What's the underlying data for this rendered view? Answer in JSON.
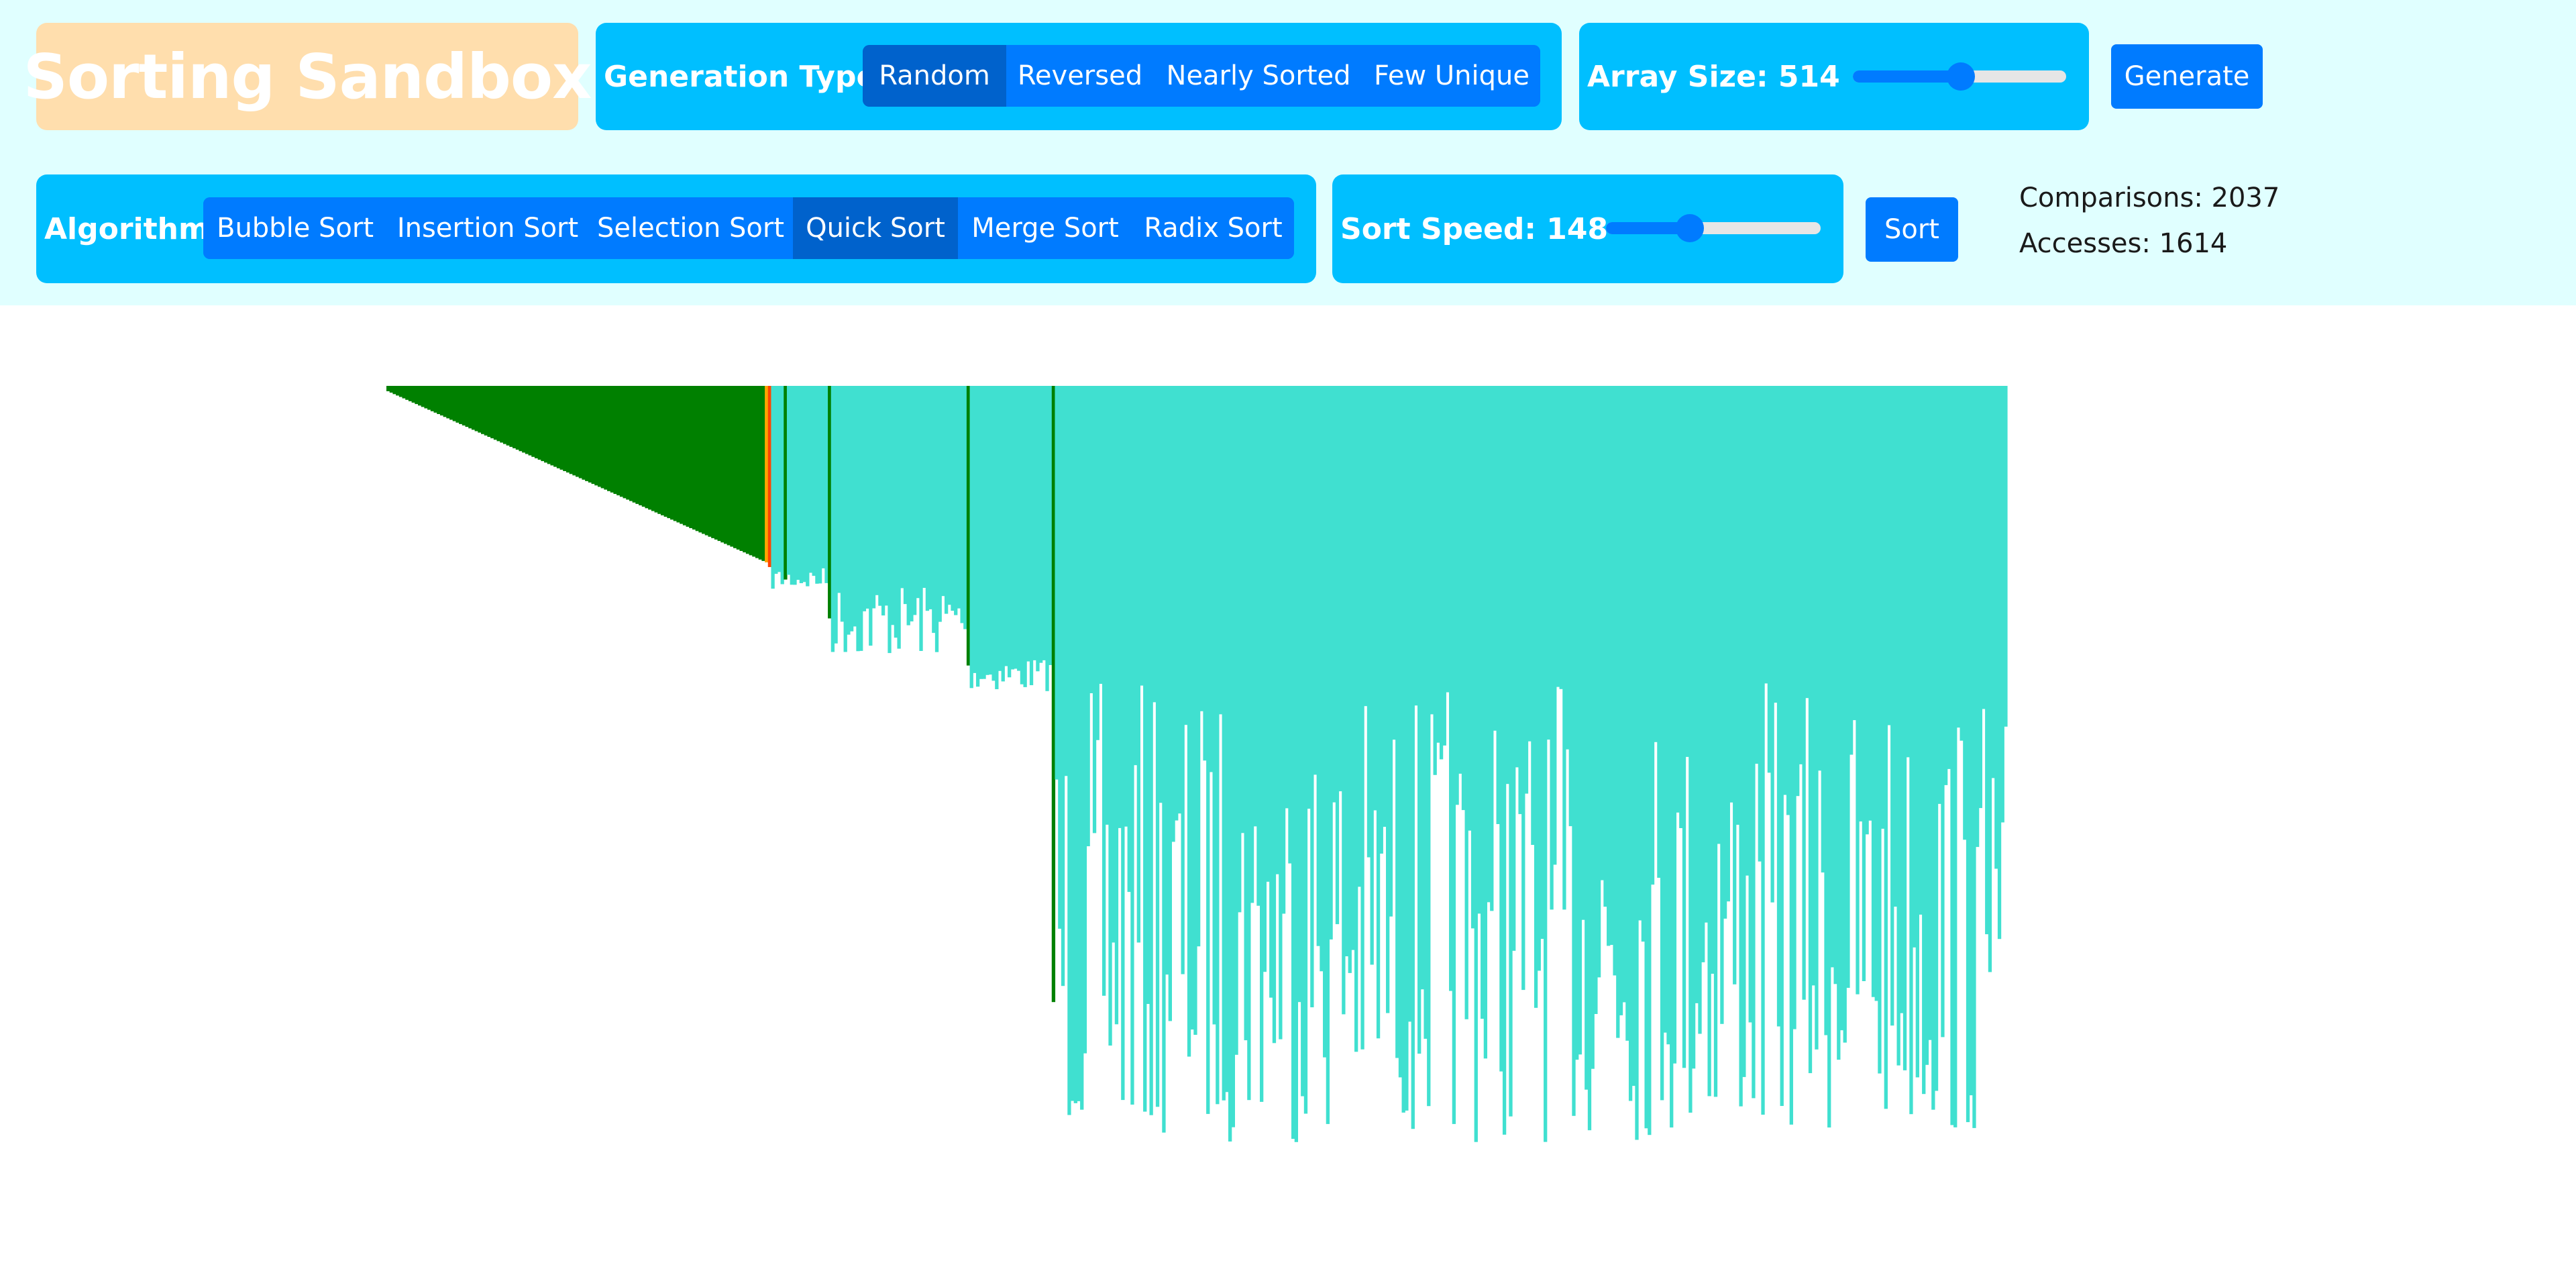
{
  "app": {
    "title": "Sorting Sandbox"
  },
  "generation": {
    "label": "Generation Types:",
    "options": [
      "Random",
      "Reversed",
      "Nearly Sorted",
      "Few Unique"
    ],
    "selected": "Random"
  },
  "array_size": {
    "label": "Array Size: 514",
    "value": 514,
    "fraction": 0.5
  },
  "generate_button": {
    "label": "Generate"
  },
  "algorithm": {
    "label": "Algorithm:",
    "options": [
      "Bubble Sort",
      "Insertion Sort",
      "Selection Sort",
      "Quick Sort",
      "Merge Sort",
      "Radix Sort"
    ],
    "selected": "Quick Sort"
  },
  "sort_speed": {
    "label": "Sort Speed: 148",
    "value": 148,
    "fraction": 0.4
  },
  "sort_button": {
    "label": "Sort"
  },
  "stats": {
    "comparisons": "Comparisons: 2037",
    "accesses": "Accesses: 1614"
  },
  "colors": {
    "toolbar_bg": "#e0ffff",
    "title_bg": "#ffdead",
    "panel_bg": "#00bfff",
    "button": "#007bff",
    "button_active": "#0062cc",
    "bar_default": "#40e0d0",
    "bar_sorted": "#008000",
    "bar_compare": "#ff4500",
    "bar_pivot": "#ffa500"
  },
  "visualization": {
    "bar_count": 514,
    "sorted_count": 120,
    "pivot_markers": [
      126,
      140,
      184,
      211
    ],
    "compare_index": 121,
    "pivot_index": 120
  }
}
